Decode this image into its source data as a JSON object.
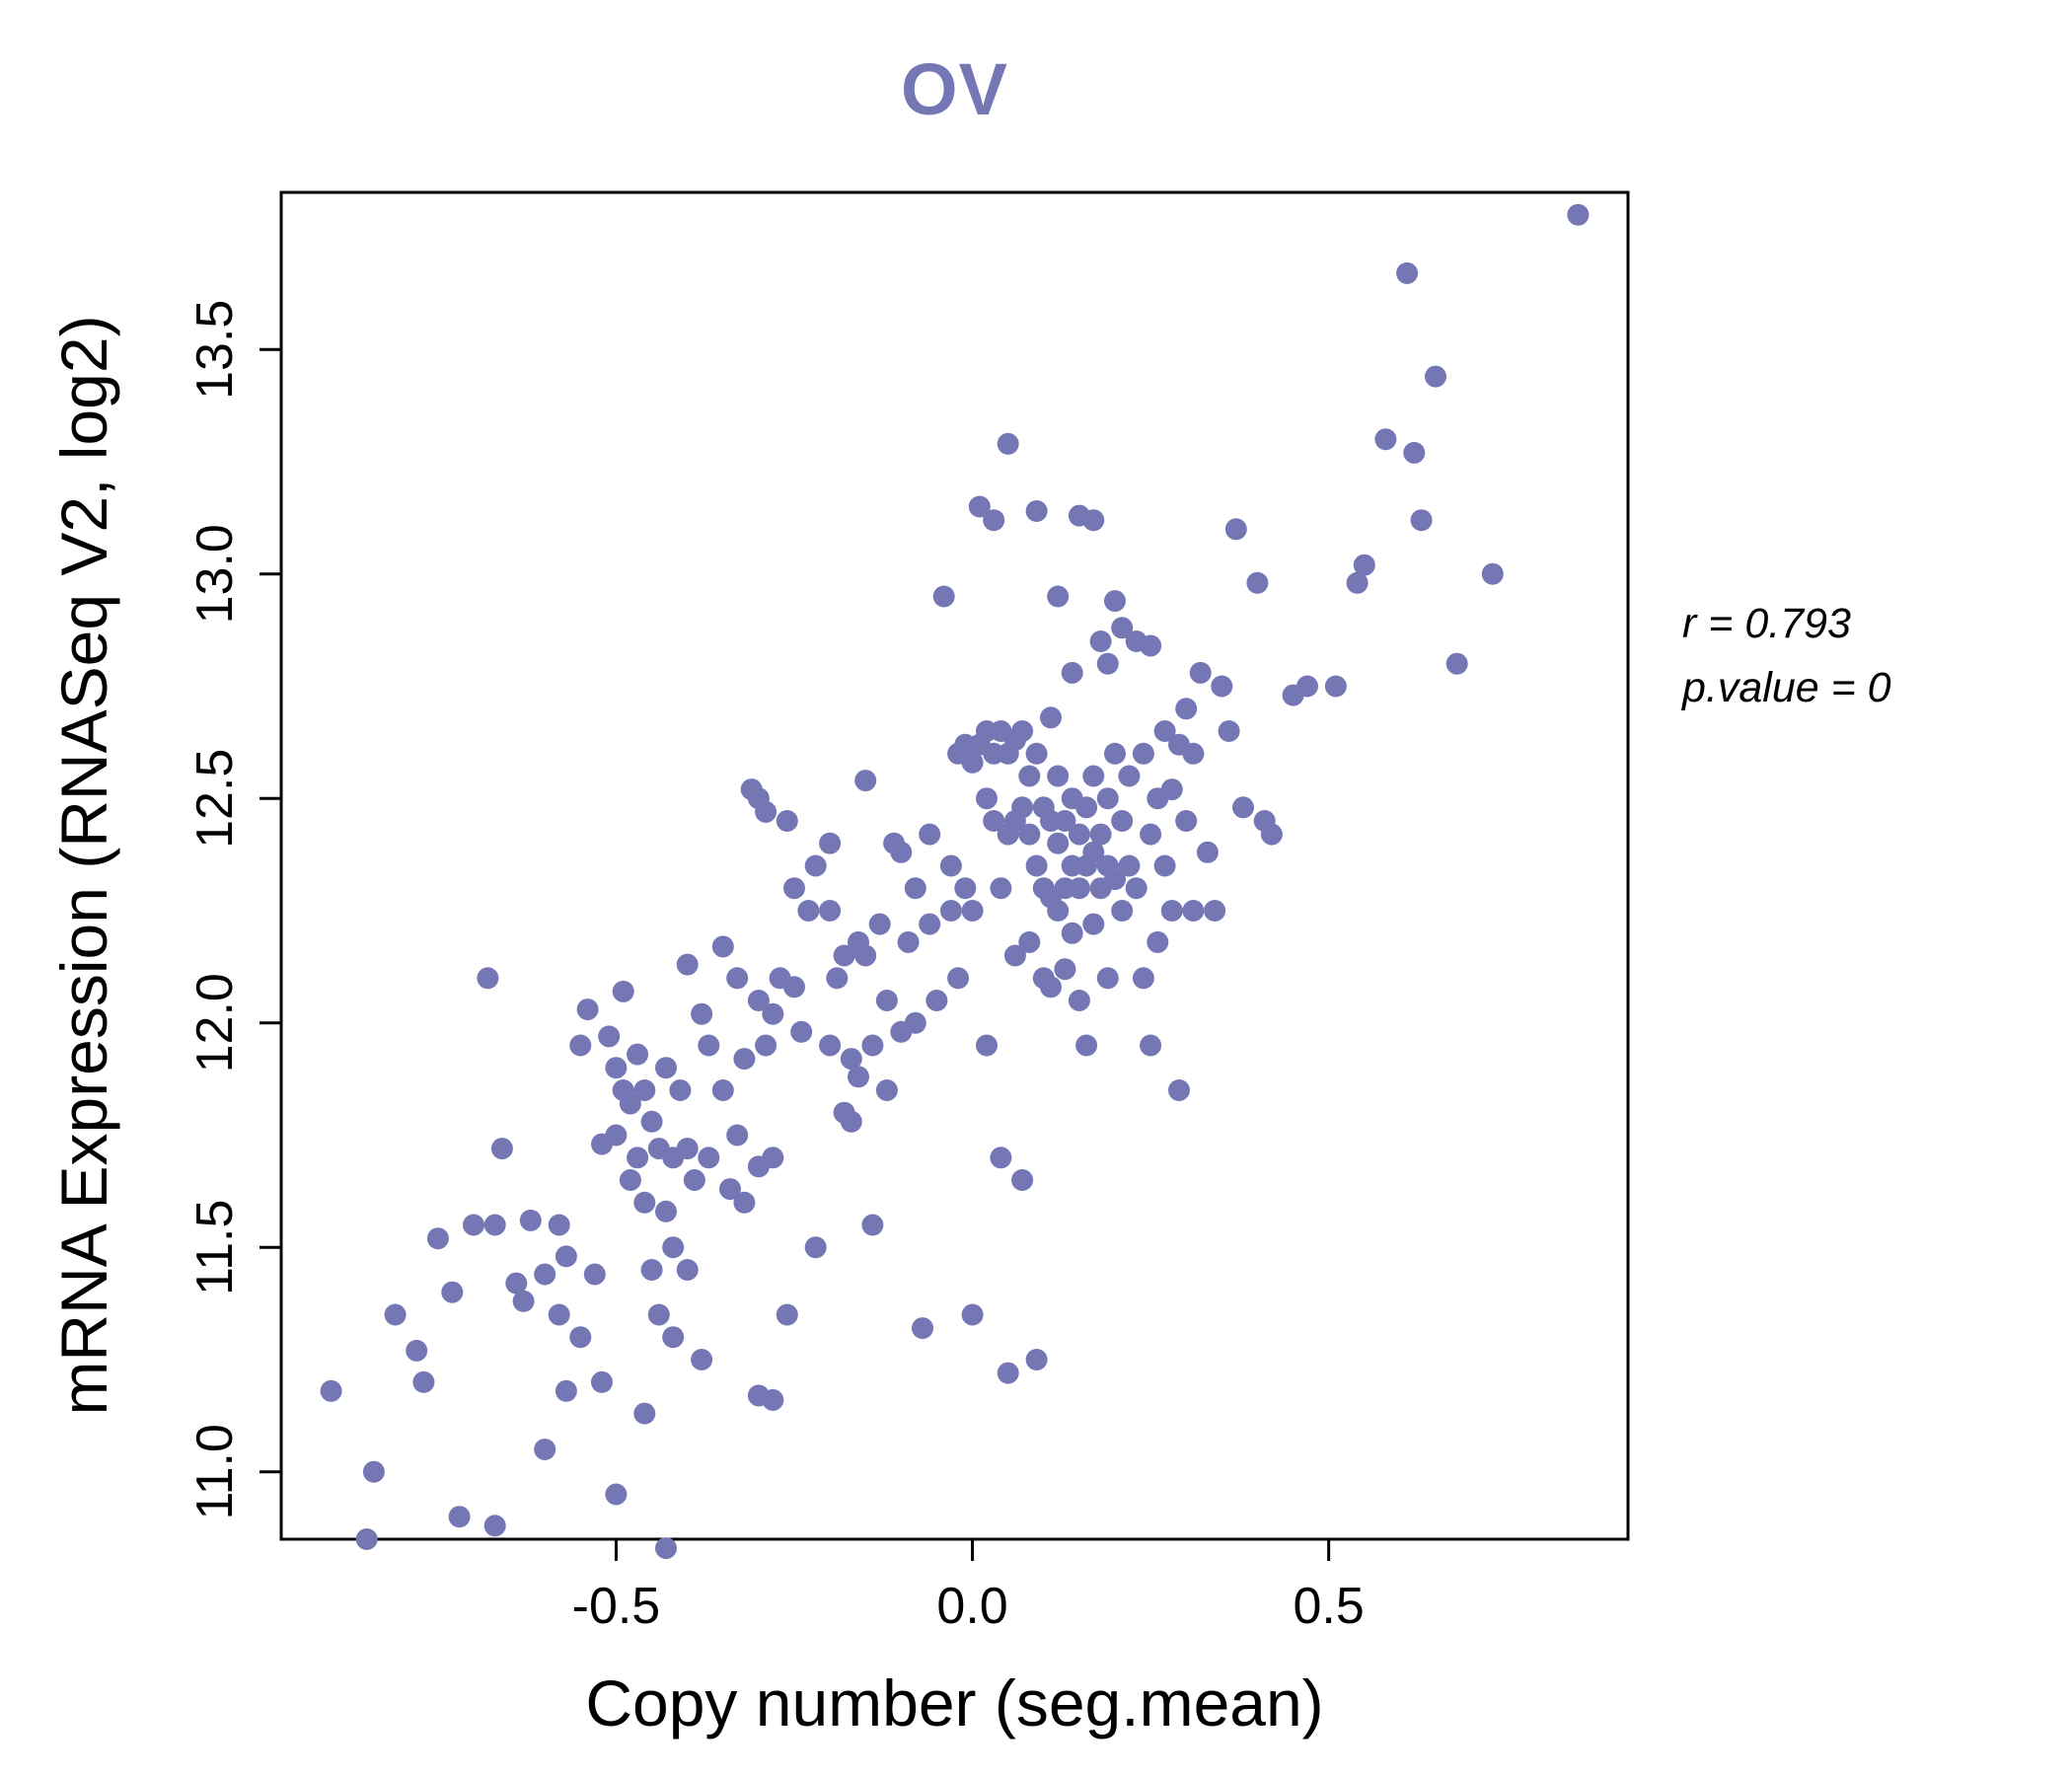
{
  "chart_data": {
    "type": "scatter",
    "title": "OV",
    "xlabel": "Copy number (seg.mean)",
    "ylabel": "mRNA Expression (RNASeq V2, log2)",
    "annotation": {
      "line1": "r = 0.793",
      "line2": "p.value = 0"
    },
    "point_color": "#7577b5",
    "title_color": "#7577b5",
    "axis_color": "#000000",
    "xlim": [
      -0.97,
      0.92
    ],
    "ylim": [
      10.85,
      13.85
    ],
    "grid": false,
    "legend": "none",
    "xticks": {
      "values": [
        -0.5,
        0.0,
        0.5
      ],
      "labels": [
        "-0.5",
        "0.0",
        "0.5"
      ]
    },
    "yticks": {
      "values": [
        11.0,
        11.5,
        12.0,
        12.5,
        13.0,
        13.5
      ],
      "labels": [
        "11.0",
        "11.5",
        "12.0",
        "12.5",
        "13.0",
        "13.5"
      ]
    },
    "points": [
      [
        -0.9,
        11.18
      ],
      [
        -0.85,
        10.85
      ],
      [
        -0.84,
        11.0
      ],
      [
        -0.81,
        11.35
      ],
      [
        -0.78,
        11.27
      ],
      [
        -0.77,
        11.2
      ],
      [
        -0.75,
        11.52
      ],
      [
        -0.73,
        11.4
      ],
      [
        -0.72,
        10.9
      ],
      [
        -0.7,
        11.55
      ],
      [
        -0.68,
        12.1
      ],
      [
        -0.67,
        11.55
      ],
      [
        -0.67,
        10.88
      ],
      [
        -0.66,
        11.72
      ],
      [
        -0.64,
        11.42
      ],
      [
        -0.63,
        11.38
      ],
      [
        -0.62,
        11.56
      ],
      [
        -0.6,
        11.05
      ],
      [
        -0.6,
        11.44
      ],
      [
        -0.58,
        11.55
      ],
      [
        -0.58,
        11.35
      ],
      [
        -0.57,
        11.48
      ],
      [
        -0.57,
        11.18
      ],
      [
        -0.55,
        11.95
      ],
      [
        -0.55,
        11.3
      ],
      [
        -0.54,
        12.03
      ],
      [
        -0.53,
        11.44
      ],
      [
        -0.52,
        11.73
      ],
      [
        -0.52,
        11.2
      ],
      [
        -0.51,
        11.97
      ],
      [
        -0.5,
        11.9
      ],
      [
        -0.5,
        11.75
      ],
      [
        -0.5,
        10.95
      ],
      [
        -0.49,
        12.07
      ],
      [
        -0.49,
        11.85
      ],
      [
        -0.48,
        11.82
      ],
      [
        -0.48,
        11.65
      ],
      [
        -0.47,
        11.93
      ],
      [
        -0.47,
        11.7
      ],
      [
        -0.46,
        11.85
      ],
      [
        -0.46,
        11.6
      ],
      [
        -0.46,
        11.13
      ],
      [
        -0.45,
        11.78
      ],
      [
        -0.45,
        11.45
      ],
      [
        -0.44,
        11.72
      ],
      [
        -0.44,
        11.35
      ],
      [
        -0.43,
        11.9
      ],
      [
        -0.43,
        11.58
      ],
      [
        -0.43,
        10.83
      ],
      [
        -0.42,
        11.7
      ],
      [
        -0.42,
        11.5
      ],
      [
        -0.42,
        11.3
      ],
      [
        -0.41,
        11.85
      ],
      [
        -0.4,
        12.13
      ],
      [
        -0.4,
        11.72
      ],
      [
        -0.4,
        11.45
      ],
      [
        -0.39,
        11.65
      ],
      [
        -0.38,
        12.02
      ],
      [
        -0.38,
        11.25
      ],
      [
        -0.37,
        11.95
      ],
      [
        -0.37,
        11.7
      ],
      [
        -0.35,
        12.17
      ],
      [
        -0.35,
        11.85
      ],
      [
        -0.34,
        11.63
      ],
      [
        -0.33,
        12.1
      ],
      [
        -0.33,
        11.75
      ],
      [
        -0.32,
        11.92
      ],
      [
        -0.32,
        11.6
      ],
      [
        -0.31,
        12.52
      ],
      [
        -0.3,
        12.5
      ],
      [
        -0.3,
        12.05
      ],
      [
        -0.3,
        11.68
      ],
      [
        -0.3,
        11.17
      ],
      [
        -0.29,
        12.47
      ],
      [
        -0.29,
        11.95
      ],
      [
        -0.28,
        12.02
      ],
      [
        -0.28,
        11.7
      ],
      [
        -0.28,
        11.16
      ],
      [
        -0.27,
        12.1
      ],
      [
        -0.26,
        12.45
      ],
      [
        -0.26,
        11.35
      ],
      [
        -0.25,
        12.3
      ],
      [
        -0.25,
        12.08
      ],
      [
        -0.24,
        11.98
      ],
      [
        -0.23,
        12.25
      ],
      [
        -0.22,
        12.35
      ],
      [
        -0.22,
        11.5
      ],
      [
        -0.2,
        12.4
      ],
      [
        -0.2,
        12.25
      ],
      [
        -0.2,
        11.95
      ],
      [
        -0.19,
        12.1
      ],
      [
        -0.18,
        12.15
      ],
      [
        -0.18,
        11.8
      ],
      [
        -0.17,
        11.92
      ],
      [
        -0.17,
        11.78
      ],
      [
        -0.16,
        12.18
      ],
      [
        -0.16,
        11.88
      ],
      [
        -0.15,
        12.54
      ],
      [
        -0.15,
        12.15
      ],
      [
        -0.14,
        11.95
      ],
      [
        -0.14,
        11.55
      ],
      [
        -0.13,
        12.22
      ],
      [
        -0.12,
        12.05
      ],
      [
        -0.12,
        11.85
      ],
      [
        -0.11,
        12.4
      ],
      [
        -0.1,
        12.38
      ],
      [
        -0.1,
        11.98
      ],
      [
        -0.09,
        12.18
      ],
      [
        -0.08,
        12.3
      ],
      [
        -0.08,
        12.0
      ],
      [
        -0.07,
        11.32
      ],
      [
        -0.06,
        12.42
      ],
      [
        -0.06,
        12.22
      ],
      [
        -0.05,
        12.05
      ],
      [
        -0.04,
        12.95
      ],
      [
        -0.03,
        12.35
      ],
      [
        -0.03,
        12.25
      ],
      [
        -0.02,
        12.6
      ],
      [
        -0.02,
        12.1
      ],
      [
        -0.01,
        12.62
      ],
      [
        -0.01,
        12.3
      ],
      [
        0.0,
        12.58
      ],
      [
        0.0,
        12.25
      ],
      [
        0.0,
        11.35
      ],
      [
        0.01,
        13.15
      ],
      [
        0.01,
        12.62
      ],
      [
        0.02,
        12.65
      ],
      [
        0.02,
        12.5
      ],
      [
        0.02,
        11.95
      ],
      [
        0.03,
        13.12
      ],
      [
        0.03,
        12.6
      ],
      [
        0.03,
        12.45
      ],
      [
        0.04,
        12.65
      ],
      [
        0.04,
        12.3
      ],
      [
        0.04,
        11.7
      ],
      [
        0.05,
        13.29
      ],
      [
        0.05,
        12.6
      ],
      [
        0.05,
        12.42
      ],
      [
        0.05,
        11.22
      ],
      [
        0.06,
        12.63
      ],
      [
        0.06,
        12.45
      ],
      [
        0.06,
        12.15
      ],
      [
        0.07,
        12.65
      ],
      [
        0.07,
        12.48
      ],
      [
        0.07,
        11.65
      ],
      [
        0.08,
        12.55
      ],
      [
        0.08,
        12.42
      ],
      [
        0.08,
        12.18
      ],
      [
        0.09,
        13.14
      ],
      [
        0.09,
        12.6
      ],
      [
        0.09,
        12.35
      ],
      [
        0.09,
        11.25
      ],
      [
        0.1,
        12.48
      ],
      [
        0.1,
        12.3
      ],
      [
        0.1,
        12.1
      ],
      [
        0.11,
        12.68
      ],
      [
        0.11,
        12.45
      ],
      [
        0.11,
        12.28
      ],
      [
        0.11,
        12.08
      ],
      [
        0.12,
        12.95
      ],
      [
        0.12,
        12.55
      ],
      [
        0.12,
        12.4
      ],
      [
        0.12,
        12.25
      ],
      [
        0.13,
        12.45
      ],
      [
        0.13,
        12.3
      ],
      [
        0.13,
        12.12
      ],
      [
        0.14,
        12.78
      ],
      [
        0.14,
        12.5
      ],
      [
        0.14,
        12.35
      ],
      [
        0.14,
        12.2
      ],
      [
        0.15,
        13.13
      ],
      [
        0.15,
        12.42
      ],
      [
        0.15,
        12.3
      ],
      [
        0.15,
        12.05
      ],
      [
        0.16,
        12.48
      ],
      [
        0.16,
        12.35
      ],
      [
        0.16,
        11.95
      ],
      [
        0.17,
        13.12
      ],
      [
        0.17,
        12.55
      ],
      [
        0.17,
        12.38
      ],
      [
        0.17,
        12.22
      ],
      [
        0.18,
        12.85
      ],
      [
        0.18,
        12.42
      ],
      [
        0.18,
        12.3
      ],
      [
        0.19,
        12.8
      ],
      [
        0.19,
        12.5
      ],
      [
        0.19,
        12.35
      ],
      [
        0.19,
        12.1
      ],
      [
        0.2,
        12.94
      ],
      [
        0.2,
        12.6
      ],
      [
        0.2,
        12.32
      ],
      [
        0.21,
        12.88
      ],
      [
        0.21,
        12.45
      ],
      [
        0.21,
        12.25
      ],
      [
        0.22,
        12.55
      ],
      [
        0.22,
        12.35
      ],
      [
        0.23,
        12.85
      ],
      [
        0.23,
        12.3
      ],
      [
        0.24,
        12.6
      ],
      [
        0.24,
        12.1
      ],
      [
        0.25,
        12.84
      ],
      [
        0.25,
        12.42
      ],
      [
        0.25,
        11.95
      ],
      [
        0.26,
        12.5
      ],
      [
        0.26,
        12.18
      ],
      [
        0.27,
        12.65
      ],
      [
        0.27,
        12.35
      ],
      [
        0.28,
        12.52
      ],
      [
        0.28,
        12.25
      ],
      [
        0.29,
        12.62
      ],
      [
        0.29,
        11.85
      ],
      [
        0.3,
        12.7
      ],
      [
        0.3,
        12.45
      ],
      [
        0.31,
        12.6
      ],
      [
        0.31,
        12.25
      ],
      [
        0.32,
        12.78
      ],
      [
        0.33,
        12.38
      ],
      [
        0.34,
        12.25
      ],
      [
        0.35,
        12.75
      ],
      [
        0.36,
        12.65
      ],
      [
        0.37,
        13.1
      ],
      [
        0.38,
        12.48
      ],
      [
        0.4,
        12.98
      ],
      [
        0.41,
        12.45
      ],
      [
        0.42,
        12.42
      ],
      [
        0.45,
        12.73
      ],
      [
        0.47,
        12.75
      ],
      [
        0.51,
        12.75
      ],
      [
        0.54,
        12.98
      ],
      [
        0.55,
        13.02
      ],
      [
        0.58,
        13.3
      ],
      [
        0.61,
        13.67
      ],
      [
        0.62,
        13.27
      ],
      [
        0.63,
        13.12
      ],
      [
        0.65,
        13.44
      ],
      [
        0.68,
        12.8
      ],
      [
        0.73,
        13.0
      ],
      [
        0.85,
        13.8
      ]
    ]
  }
}
